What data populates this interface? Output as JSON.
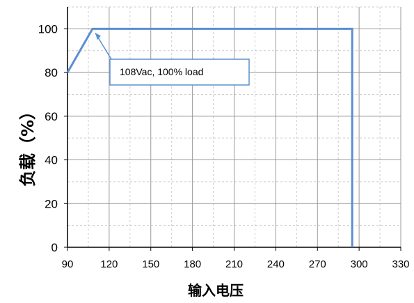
{
  "chart_data": {
    "type": "line",
    "title": "",
    "ylabel": "负载（%）",
    "xlabel": "输入电压",
    "xlim": [
      90,
      300
    ],
    "ylim": [
      0,
      100
    ],
    "xticks": [
      "90",
      "120",
      "150",
      "180",
      "210",
      "240",
      "270",
      "300",
      "330"
    ],
    "yticks": [
      "0",
      "20",
      "40",
      "60",
      "80",
      "100"
    ],
    "grid": true,
    "series": [
      {
        "color": "#5b8fd2",
        "points": [
          {
            "x": 90,
            "y": 80
          },
          {
            "x": 108,
            "y": 100
          },
          {
            "x": 295,
            "y": 100
          },
          {
            "x": 295,
            "y": 0
          }
        ]
      }
    ],
    "annotations": [
      {
        "text": "108Vac, 100% load",
        "x": 108,
        "y": 100
      }
    ]
  }
}
